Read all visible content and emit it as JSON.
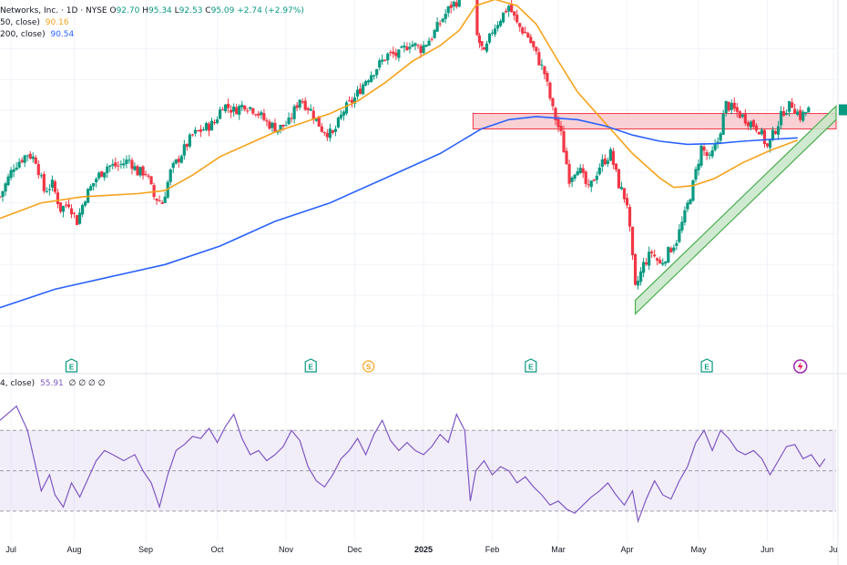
{
  "header": {
    "symbol_line": "Networks, Inc. · 1D · NYSE",
    "ohlc": [
      {
        "label": "O",
        "value": "92.70"
      },
      {
        "label": "H",
        "value": "95.34"
      },
      {
        "label": "L",
        "value": "92.53"
      },
      {
        "label": "C",
        "value": "95.09"
      }
    ],
    "change": "+2.74 (+2.97%)",
    "ma50_label": "50, close)",
    "ma50_value": "90.16",
    "ma200_label": "200, close)",
    "ma200_value": "90.54"
  },
  "rsi_legend": {
    "label": "4, close)",
    "value": "55.91",
    "extra": "∅ ∅ ∅ ∅"
  },
  "colors": {
    "up": "#089981",
    "down": "#f23645",
    "ma50": "#f7a21b",
    "ma200": "#2962ff",
    "rsi": "#7e57c2",
    "resistance_fill": "#f7c5cb",
    "resistance_stroke": "#f23645",
    "trend_fill": "#c8e6c9",
    "trend_stroke": "#4caf50"
  },
  "chart_data": {
    "type": "candlestick",
    "x_labels": [
      "Jul",
      "Aug",
      "Sep",
      "Oct",
      "Nov",
      "Dec",
      "2025",
      "Feb",
      "Mar",
      "Apr",
      "May",
      "Jun",
      "Ju"
    ],
    "x_label_positions": [
      0.4,
      2.7,
      5.3,
      7.9,
      10.4,
      12.9,
      15.4,
      17.9,
      20.3,
      22.8,
      25.4,
      27.9,
      30.3
    ],
    "x_range": [
      0,
      30.4
    ],
    "price_range": [
      56,
      107
    ],
    "price": [
      [
        0,
        81
      ],
      [
        0.5,
        86
      ],
      [
        1.0,
        88
      ],
      [
        1.3,
        87
      ],
      [
        1.6,
        82
      ],
      [
        1.9,
        83
      ],
      [
        2.2,
        79
      ],
      [
        2.5,
        80
      ],
      [
        2.8,
        77
      ],
      [
        3.1,
        81
      ],
      [
        3.5,
        84
      ],
      [
        3.9,
        86
      ],
      [
        4.3,
        86
      ],
      [
        4.7,
        87
      ],
      [
        5.0,
        85
      ],
      [
        5.3,
        85
      ],
      [
        5.6,
        81
      ],
      [
        5.9,
        80
      ],
      [
        6.2,
        85
      ],
      [
        6.6,
        88
      ],
      [
        7.0,
        91
      ],
      [
        7.4,
        92
      ],
      [
        7.8,
        93
      ],
      [
        8.1,
        96
      ],
      [
        8.5,
        95
      ],
      [
        8.9,
        96
      ],
      [
        9.3,
        95
      ],
      [
        9.7,
        93
      ],
      [
        10.1,
        92
      ],
      [
        10.5,
        93
      ],
      [
        10.9,
        97
      ],
      [
        11.3,
        95
      ],
      [
        11.7,
        92
      ],
      [
        12.1,
        91
      ],
      [
        12.5,
        95
      ],
      [
        12.9,
        97
      ],
      [
        13.3,
        100
      ],
      [
        13.7,
        102
      ],
      [
        14.1,
        104
      ],
      [
        14.5,
        104
      ],
      [
        14.9,
        106
      ],
      [
        15.3,
        105
      ],
      [
        15.7,
        107
      ],
      [
        16.1,
        110
      ],
      [
        16.4,
        112
      ],
      [
        16.7,
        113
      ],
      [
        16.95,
        120
      ],
      [
        17.15,
        126
      ],
      [
        17.35,
        107
      ],
      [
        17.6,
        104
      ],
      [
        17.9,
        108
      ],
      [
        18.2,
        110
      ],
      [
        18.5,
        112
      ],
      [
        18.8,
        109
      ],
      [
        19.2,
        107
      ],
      [
        19.5,
        104
      ],
      [
        19.8,
        101
      ],
      [
        20.1,
        95
      ],
      [
        20.4,
        91
      ],
      [
        20.7,
        84
      ],
      [
        21.0,
        86
      ],
      [
        21.4,
        82
      ],
      [
        21.8,
        86
      ],
      [
        22.2,
        88
      ],
      [
        22.5,
        83
      ],
      [
        22.8,
        80
      ],
      [
        23.1,
        66
      ],
      [
        23.4,
        70
      ],
      [
        23.7,
        72
      ],
      [
        24.0,
        70
      ],
      [
        24.3,
        72
      ],
      [
        24.6,
        74
      ],
      [
        24.9,
        78
      ],
      [
        25.2,
        83
      ],
      [
        25.5,
        89
      ],
      [
        25.8,
        87
      ],
      [
        26.1,
        90
      ],
      [
        26.4,
        96
      ],
      [
        26.7,
        95
      ],
      [
        27.0,
        94
      ],
      [
        27.3,
        93
      ],
      [
        27.6,
        92
      ],
      [
        27.9,
        89
      ],
      [
        28.2,
        92
      ],
      [
        28.5,
        95
      ],
      [
        28.8,
        96
      ],
      [
        29.1,
        94
      ],
      [
        29.4,
        95.1
      ]
    ],
    "series": [
      {
        "name": "MA 50",
        "values": [
          [
            0,
            77.5
          ],
          [
            1.5,
            80
          ],
          [
            3.0,
            81
          ],
          [
            5.0,
            81.5
          ],
          [
            6.0,
            82
          ],
          [
            7.0,
            84.5
          ],
          [
            8.0,
            87.5
          ],
          [
            9.0,
            89.5
          ],
          [
            10.0,
            91.5
          ],
          [
            11.0,
            93
          ],
          [
            12.0,
            94.5
          ],
          [
            13.0,
            96.5
          ],
          [
            14.0,
            99.5
          ],
          [
            15.0,
            103
          ],
          [
            16.0,
            105.5
          ],
          [
            16.7,
            108
          ],
          [
            17.3,
            112
          ],
          [
            18.0,
            113
          ],
          [
            18.8,
            112
          ],
          [
            19.5,
            109
          ],
          [
            20.3,
            103
          ],
          [
            21.0,
            98
          ],
          [
            22.0,
            93
          ],
          [
            23.0,
            88
          ],
          [
            24.0,
            84
          ],
          [
            24.5,
            82.5
          ],
          [
            25.2,
            82.8
          ],
          [
            26.0,
            84
          ],
          [
            27.0,
            86.5
          ],
          [
            28.0,
            88.5
          ],
          [
            29.0,
            90.16
          ]
        ]
      },
      {
        "name": "MA 200",
        "values": [
          [
            0,
            63
          ],
          [
            2.0,
            66
          ],
          [
            4.0,
            68
          ],
          [
            6.0,
            70
          ],
          [
            8.0,
            73
          ],
          [
            10.0,
            77
          ],
          [
            12.0,
            80
          ],
          [
            14.0,
            84
          ],
          [
            16.0,
            88
          ],
          [
            17.5,
            92
          ],
          [
            18.5,
            93.5
          ],
          [
            19.5,
            94
          ],
          [
            21.0,
            93.5
          ],
          [
            22.0,
            92.5
          ],
          [
            23.0,
            91
          ],
          [
            24.0,
            90
          ],
          [
            25.0,
            89.5
          ],
          [
            26.0,
            89.6
          ],
          [
            27.0,
            90
          ],
          [
            28.0,
            90.3
          ],
          [
            29.0,
            90.54
          ]
        ]
      }
    ],
    "resistance_zone": {
      "x": [
        17.2,
        30.4
      ],
      "y": [
        92,
        94.5
      ]
    },
    "trend_channel": {
      "start": [
        23.1,
        62
      ],
      "end": [
        30.4,
        93.5
      ],
      "width": 2.2
    },
    "rsi": {
      "range": [
        20,
        90
      ],
      "upper": 70,
      "lower": 30,
      "mid": 50,
      "values": [
        [
          0,
          75
        ],
        [
          0.6,
          82
        ],
        [
          1.0,
          70
        ],
        [
          1.3,
          52
        ],
        [
          1.5,
          40
        ],
        [
          1.8,
          48
        ],
        [
          2.0,
          38
        ],
        [
          2.3,
          32
        ],
        [
          2.6,
          44
        ],
        [
          2.9,
          37
        ],
        [
          3.2,
          46
        ],
        [
          3.5,
          55
        ],
        [
          3.8,
          60
        ],
        [
          4.1,
          58
        ],
        [
          4.5,
          55
        ],
        [
          4.9,
          58
        ],
        [
          5.2,
          50
        ],
        [
          5.5,
          44
        ],
        [
          5.8,
          32
        ],
        [
          6.1,
          48
        ],
        [
          6.4,
          60
        ],
        [
          6.7,
          63
        ],
        [
          7.0,
          67
        ],
        [
          7.3,
          66
        ],
        [
          7.6,
          71
        ],
        [
          7.9,
          64
        ],
        [
          8.2,
          72
        ],
        [
          8.5,
          78
        ],
        [
          8.8,
          66
        ],
        [
          9.1,
          58
        ],
        [
          9.4,
          60
        ],
        [
          9.7,
          55
        ],
        [
          10.0,
          58
        ],
        [
          10.3,
          62
        ],
        [
          10.6,
          70
        ],
        [
          10.9,
          65
        ],
        [
          11.2,
          52
        ],
        [
          11.5,
          45
        ],
        [
          11.8,
          42
        ],
        [
          12.1,
          48
        ],
        [
          12.4,
          56
        ],
        [
          12.7,
          60
        ],
        [
          13.0,
          66
        ],
        [
          13.3,
          58
        ],
        [
          13.6,
          68
        ],
        [
          13.9,
          75
        ],
        [
          14.2,
          65
        ],
        [
          14.5,
          60
        ],
        [
          14.8,
          64
        ],
        [
          15.1,
          60
        ],
        [
          15.4,
          58
        ],
        [
          15.7,
          62
        ],
        [
          16.0,
          68
        ],
        [
          16.3,
          64
        ],
        [
          16.6,
          78
        ],
        [
          16.9,
          70
        ],
        [
          17.1,
          35
        ],
        [
          17.3,
          50
        ],
        [
          17.6,
          55
        ],
        [
          17.9,
          48
        ],
        [
          18.2,
          52
        ],
        [
          18.5,
          50
        ],
        [
          18.8,
          44
        ],
        [
          19.1,
          47
        ],
        [
          19.4,
          42
        ],
        [
          19.7,
          38
        ],
        [
          20.0,
          33
        ],
        [
          20.3,
          35
        ],
        [
          20.6,
          31
        ],
        [
          20.9,
          29
        ],
        [
          21.2,
          33
        ],
        [
          21.5,
          37
        ],
        [
          21.8,
          40
        ],
        [
          22.1,
          44
        ],
        [
          22.4,
          38
        ],
        [
          22.7,
          33
        ],
        [
          23.0,
          40
        ],
        [
          23.2,
          25
        ],
        [
          23.5,
          36
        ],
        [
          23.8,
          45
        ],
        [
          24.1,
          38
        ],
        [
          24.4,
          36
        ],
        [
          24.7,
          45
        ],
        [
          25.0,
          52
        ],
        [
          25.3,
          64
        ],
        [
          25.6,
          70
        ],
        [
          25.9,
          60
        ],
        [
          26.2,
          70
        ],
        [
          26.5,
          66
        ],
        [
          26.8,
          60
        ],
        [
          27.1,
          58
        ],
        [
          27.4,
          60
        ],
        [
          27.7,
          56
        ],
        [
          28.0,
          48
        ],
        [
          28.3,
          55
        ],
        [
          28.6,
          62
        ],
        [
          28.9,
          63
        ],
        [
          29.2,
          56
        ],
        [
          29.5,
          58
        ],
        [
          29.8,
          52
        ],
        [
          30.0,
          55.91
        ]
      ]
    },
    "event_markers": [
      {
        "x": 2.6,
        "label": "E",
        "kind": "earnings"
      },
      {
        "x": 11.3,
        "label": "E",
        "kind": "earnings"
      },
      {
        "x": 13.4,
        "label": "S",
        "kind": "split"
      },
      {
        "x": 19.3,
        "label": "E",
        "kind": "earnings"
      },
      {
        "x": 25.7,
        "label": "E",
        "kind": "earnings"
      },
      {
        "x": 29.1,
        "label": "",
        "kind": "flash"
      }
    ]
  }
}
